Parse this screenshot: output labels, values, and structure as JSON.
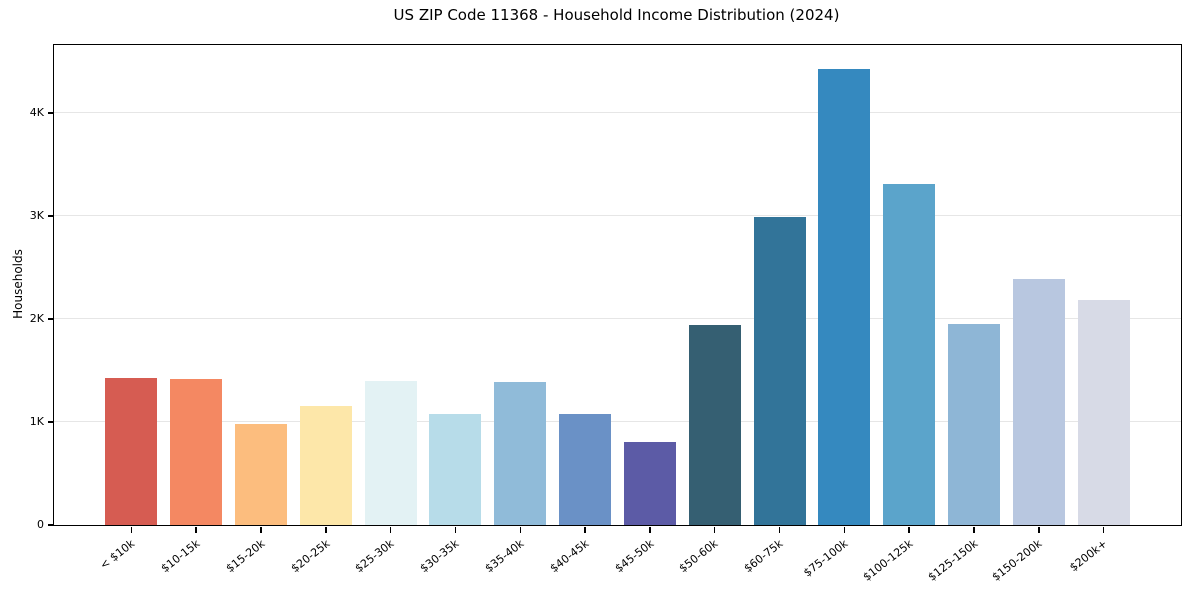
{
  "chart_data": {
    "type": "bar",
    "title": "US ZIP Code 11368 - Household Income Distribution (2024)",
    "xlabel": "",
    "ylabel": "Households",
    "categories": [
      "< $10k",
      "$10-15k",
      "$15-20k",
      "$20-25k",
      "$25-30k",
      "$30-35k",
      "$35-40k",
      "$40-45k",
      "$45-50k",
      "$50-60k",
      "$60-75k",
      "$75-100k",
      "$100-125k",
      "$125-150k",
      "$150-200k",
      "$200k+"
    ],
    "values": [
      1430,
      1415,
      985,
      1155,
      1400,
      1080,
      1385,
      1080,
      810,
      1945,
      2995,
      4430,
      3310,
      1950,
      2385,
      2185
    ],
    "colors": [
      "#d65c52",
      "#f48862",
      "#fcbd7e",
      "#fde7a9",
      "#e3f2f4",
      "#b7dce9",
      "#90bbd9",
      "#6a91c6",
      "#5c5ba6",
      "#355f72",
      "#327499",
      "#3589bf",
      "#5ba4cb",
      "#8eb6d6",
      "#b8c7e0",
      "#d7dae6"
    ],
    "ylim": [
      0,
      4660
    ],
    "yticks": [
      {
        "value": 0,
        "label": "0"
      },
      {
        "value": 1000,
        "label": "1K"
      },
      {
        "value": 2000,
        "label": "2K"
      },
      {
        "value": 3000,
        "label": "3K"
      },
      {
        "value": 4000,
        "label": "4K"
      }
    ],
    "grid": "horizontal",
    "gridline_color": "#e6e6e6",
    "spine_color": "#000000",
    "background": "#ffffff",
    "legend": "none"
  }
}
